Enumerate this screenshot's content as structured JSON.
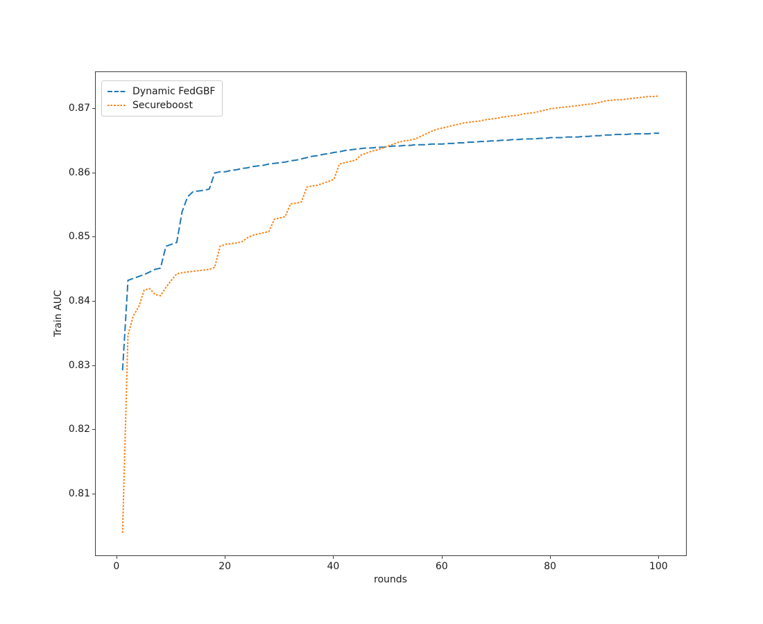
{
  "figure": {
    "background": "#ffffff",
    "spine_color": "#3b3b3b",
    "text_color": "#1a1a1a"
  },
  "chart_data": {
    "type": "line",
    "title": "",
    "xlabel": "rounds",
    "ylabel": "Train AUC",
    "xlim": [
      -3.95,
      104.95
    ],
    "ylim": [
      0.8005,
      0.8757
    ],
    "xticks": [
      0,
      20,
      40,
      60,
      80,
      100
    ],
    "xtick_labels": [
      "0",
      "20",
      "40",
      "60",
      "80",
      "100"
    ],
    "yticks": [
      0.81,
      0.82,
      0.83,
      0.84,
      0.85,
      0.86,
      0.87
    ],
    "ytick_labels": [
      "0.81",
      "0.82",
      "0.83",
      "0.84",
      "0.85",
      "0.86",
      "0.87"
    ],
    "grid": false,
    "legend_position": "upper-left",
    "series": [
      {
        "name": "Dynamic FedGBF",
        "color": "#1f77b4",
        "linestyle": "dashed",
        "x": [
          1,
          2,
          3,
          4,
          5,
          6,
          7,
          8,
          9,
          10,
          11,
          12,
          13,
          14,
          15,
          16,
          17,
          18,
          19,
          20,
          21,
          22,
          23,
          24,
          25,
          26,
          27,
          28,
          29,
          30,
          31,
          32,
          33,
          34,
          35,
          36,
          37,
          38,
          39,
          40,
          41,
          42,
          43,
          44,
          45,
          46,
          47,
          48,
          49,
          50,
          51,
          52,
          53,
          54,
          55,
          56,
          57,
          58,
          59,
          60,
          61,
          62,
          63,
          64,
          65,
          66,
          67,
          68,
          69,
          70,
          71,
          72,
          73,
          74,
          75,
          76,
          77,
          78,
          79,
          80,
          81,
          82,
          83,
          84,
          85,
          86,
          87,
          88,
          89,
          90,
          91,
          92,
          93,
          94,
          95,
          96,
          97,
          98,
          99,
          100
        ],
        "values": [
          0.8293,
          0.8433,
          0.8436,
          0.8439,
          0.8442,
          0.8446,
          0.845,
          0.8452,
          0.8486,
          0.8489,
          0.8492,
          0.854,
          0.8563,
          0.8571,
          0.8572,
          0.8573,
          0.8575,
          0.86,
          0.8602,
          0.8602,
          0.8604,
          0.8605,
          0.8607,
          0.8608,
          0.861,
          0.8611,
          0.8612,
          0.8614,
          0.8615,
          0.8616,
          0.8617,
          0.8619,
          0.862,
          0.8622,
          0.8624,
          0.8626,
          0.8627,
          0.8629,
          0.863,
          0.8632,
          0.8633,
          0.8635,
          0.8636,
          0.8637,
          0.8638,
          0.8639,
          0.8639,
          0.864,
          0.864,
          0.8641,
          0.8642,
          0.8642,
          0.8643,
          0.8643,
          0.8644,
          0.8644,
          0.8644,
          0.8645,
          0.8645,
          0.8645,
          0.8646,
          0.8646,
          0.8647,
          0.8647,
          0.8648,
          0.8648,
          0.8649,
          0.8649,
          0.865,
          0.865,
          0.8651,
          0.8651,
          0.8652,
          0.8652,
          0.8653,
          0.8653,
          0.8653,
          0.8654,
          0.8654,
          0.8655,
          0.8655,
          0.8655,
          0.8656,
          0.8656,
          0.8656,
          0.8657,
          0.8657,
          0.8658,
          0.8658,
          0.8659,
          0.8659,
          0.866,
          0.866,
          0.866,
          0.8661,
          0.8661,
          0.8661,
          0.8661,
          0.8662,
          0.8662
        ]
      },
      {
        "name": "Secureboost",
        "color": "#ff7f0e",
        "linestyle": "dotted",
        "x": [
          1,
          2,
          3,
          4,
          5,
          6,
          7,
          8,
          9,
          10,
          11,
          12,
          13,
          14,
          15,
          16,
          17,
          18,
          19,
          20,
          21,
          22,
          23,
          24,
          25,
          26,
          27,
          28,
          29,
          30,
          31,
          32,
          33,
          34,
          35,
          36,
          37,
          38,
          39,
          40,
          41,
          42,
          43,
          44,
          45,
          46,
          47,
          48,
          49,
          50,
          51,
          52,
          53,
          54,
          55,
          56,
          57,
          58,
          59,
          60,
          61,
          62,
          63,
          64,
          65,
          66,
          67,
          68,
          69,
          70,
          71,
          72,
          73,
          74,
          75,
          76,
          77,
          78,
          79,
          80,
          81,
          82,
          83,
          84,
          85,
          86,
          87,
          88,
          89,
          90,
          91,
          92,
          93,
          94,
          95,
          96,
          97,
          98,
          99,
          100
        ],
        "values": [
          0.804,
          0.8348,
          0.8378,
          0.8392,
          0.8418,
          0.842,
          0.8411,
          0.8409,
          0.8422,
          0.8433,
          0.8443,
          0.8445,
          0.8446,
          0.8447,
          0.8448,
          0.8449,
          0.845,
          0.8453,
          0.8486,
          0.8489,
          0.849,
          0.8491,
          0.8493,
          0.8499,
          0.8503,
          0.8505,
          0.8507,
          0.8509,
          0.8528,
          0.853,
          0.8532,
          0.8552,
          0.8553,
          0.8555,
          0.8578,
          0.858,
          0.8581,
          0.8584,
          0.8587,
          0.859,
          0.8614,
          0.8616,
          0.8618,
          0.862,
          0.8628,
          0.8631,
          0.8634,
          0.8636,
          0.8639,
          0.8642,
          0.8645,
          0.8648,
          0.865,
          0.8651,
          0.8653,
          0.8657,
          0.8661,
          0.8665,
          0.8668,
          0.867,
          0.8672,
          0.8674,
          0.8676,
          0.8678,
          0.8679,
          0.868,
          0.8681,
          0.8683,
          0.8684,
          0.8685,
          0.8687,
          0.8688,
          0.8689,
          0.869,
          0.8692,
          0.8693,
          0.8694,
          0.8696,
          0.8698,
          0.87,
          0.8701,
          0.8702,
          0.8703,
          0.8704,
          0.8705,
          0.8706,
          0.8707,
          0.8708,
          0.871,
          0.8712,
          0.8713,
          0.8714,
          0.8714,
          0.8715,
          0.8716,
          0.8717,
          0.8718,
          0.8719,
          0.8719,
          0.872
        ]
      }
    ]
  }
}
